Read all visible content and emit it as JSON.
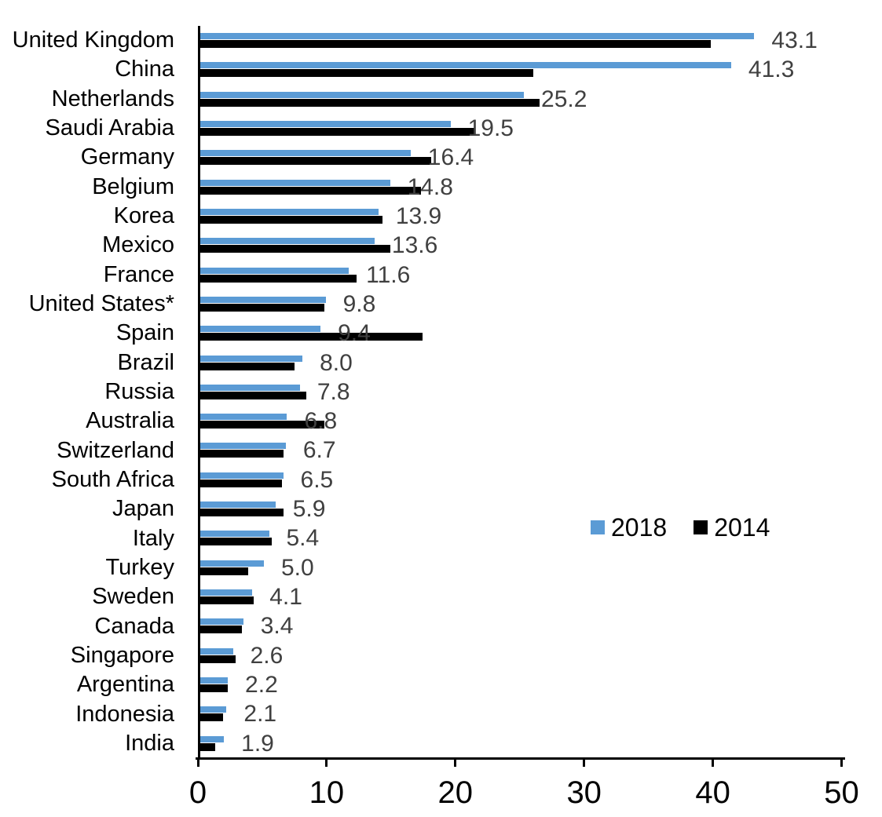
{
  "chart_data": {
    "type": "bar",
    "orientation": "horizontal",
    "title": "",
    "xlabel": "",
    "ylabel": "",
    "xlim": [
      0,
      50
    ],
    "x_ticks": [
      0,
      10,
      20,
      30,
      40,
      50
    ],
    "grid": false,
    "legend_position": "middle-right",
    "categories": [
      "United Kingdom",
      "China",
      "Netherlands",
      "Saudi Arabia",
      "Germany",
      "Belgium",
      "Korea",
      "Mexico",
      "France",
      "United States*",
      "Spain",
      "Brazil",
      "Russia",
      "Australia",
      "Switzerland",
      "South Africa",
      "Japan",
      "Italy",
      "Turkey",
      "Sweden",
      "Canada",
      "Singapore",
      "Argentina",
      "Indonesia",
      "India"
    ],
    "series": [
      {
        "name": "2018",
        "color": "#5B9BD5",
        "data_labels_shown": true,
        "values": [
          43.1,
          41.3,
          25.2,
          19.5,
          16.4,
          14.8,
          13.9,
          13.6,
          11.6,
          9.8,
          9.4,
          8.0,
          7.8,
          6.8,
          6.7,
          6.5,
          5.9,
          5.4,
          5.0,
          4.1,
          3.4,
          2.6,
          2.2,
          2.1,
          1.9
        ]
      },
      {
        "name": "2014",
        "color": "#000000",
        "data_labels_shown": false,
        "values": [
          39.7,
          25.9,
          26.4,
          21.4,
          18.0,
          17.2,
          14.2,
          14.8,
          12.2,
          9.7,
          17.3,
          7.4,
          8.3,
          9.7,
          6.5,
          6.4,
          6.5,
          5.6,
          3.8,
          4.2,
          3.3,
          2.8,
          2.2,
          1.8,
          1.2
        ]
      }
    ],
    "data_label_color": "#404040"
  },
  "legend": {
    "items": [
      {
        "label": "2018",
        "color": "#5B9BD5"
      },
      {
        "label": "2014",
        "color": "#000000"
      }
    ]
  }
}
